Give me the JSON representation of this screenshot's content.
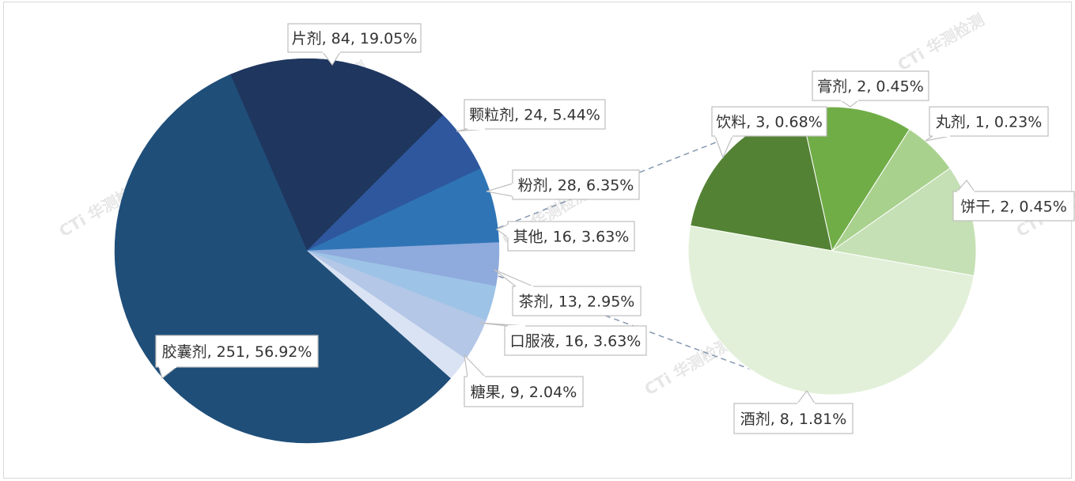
{
  "chart_data": [
    {
      "type": "pie",
      "slices": [
        {
          "label": "片剂",
          "value": 84,
          "percent": "19.05%",
          "color": "#1f365f",
          "text": "片剂, 84, 19.05%"
        },
        {
          "label": "颗粒剂",
          "value": 24,
          "percent": "5.44%",
          "color": "#2e579e",
          "text": "颗粒剂, 24, 5.44%"
        },
        {
          "label": "粉剂",
          "value": 28,
          "percent": "6.35%",
          "color": "#2f75b6",
          "text": "粉剂, 28, 6.35%"
        },
        {
          "label": "其他",
          "value": 16,
          "percent": "3.63%",
          "color": "#8faadc",
          "text": "其他, 16, 3.63%"
        },
        {
          "label": "茶剂",
          "value": 13,
          "percent": "2.95%",
          "color": "#9dc3e6",
          "text": "茶剂, 13, 2.95%"
        },
        {
          "label": "口服液",
          "value": 16,
          "percent": "3.63%",
          "color": "#b4c7e7",
          "text": "口服液, 16, 3.63%"
        },
        {
          "label": "糖果",
          "value": 9,
          "percent": "2.04%",
          "color": "#dae3f3",
          "text": "糖果, 9, 2.04%"
        },
        {
          "label": "胶囊剂",
          "value": 251,
          "percent": "56.92%",
          "color": "#1f4e79",
          "text": "胶囊剂, 251, 56.92%"
        }
      ]
    },
    {
      "type": "pie",
      "slices": [
        {
          "label": "饮料",
          "value": 3,
          "percent": "0.68%",
          "color": "#548235",
          "text": "饮料, 3, 0.68%"
        },
        {
          "label": "膏剂",
          "value": 2,
          "percent": "0.45%",
          "color": "#70ad47",
          "text": "膏剂, 2, 0.45%"
        },
        {
          "label": "丸剂",
          "value": 1,
          "percent": "0.23%",
          "color": "#a9d18e",
          "text": "丸剂, 1, 0.23%"
        },
        {
          "label": "饼干",
          "value": 2,
          "percent": "0.45%",
          "color": "#c5e0b4",
          "text": "饼干, 2, 0.45%"
        },
        {
          "label": "酒剂",
          "value": 8,
          "percent": "1.81%",
          "color": "#e2f0d9",
          "text": "酒剂, 8, 1.81%"
        }
      ]
    }
  ],
  "watermark": "CTi 华测检测"
}
